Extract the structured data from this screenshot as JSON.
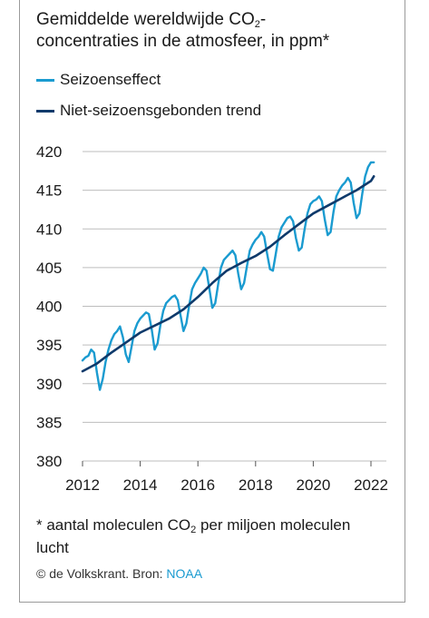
{
  "header": {
    "title_line1_a": "Gemiddelde wereldwijde CO",
    "title_line1_sub": "2",
    "title_line1_b": "-",
    "title_line2": "concentraties in de atmosfeer, in ppm*"
  },
  "footnote": {
    "text_a": "* aantal moleculen CO",
    "text_sub": "2",
    "text_b": " per miljoen moleculen",
    "text_c": "lucht"
  },
  "source": {
    "prefix": "© de Volkskrant. Bron: ",
    "link": "NOAA"
  },
  "colors": {
    "seasonal": "#1a9bd0",
    "trend": "#0f3a6b",
    "grid": "#bdbdbd"
  },
  "chart_data": {
    "type": "line",
    "x_ticks": [
      "2012",
      "2014",
      "2016",
      "2018",
      "2020",
      "2022"
    ],
    "y_ticks": [
      "380",
      "385",
      "390",
      "395",
      "400",
      "405",
      "410",
      "415",
      "420"
    ],
    "xlim": [
      2012,
      2022.5
    ],
    "ylim": [
      380,
      420
    ],
    "grid": true,
    "legend_position": "top-left",
    "series": [
      {
        "name": "Seizoenseffect",
        "x": [
          2012.0,
          2012.1,
          2012.2,
          2012.3,
          2012.4,
          2012.5,
          2012.6,
          2012.7,
          2012.8,
          2012.9,
          2013.0,
          2013.1,
          2013.2,
          2013.3,
          2013.4,
          2013.5,
          2013.6,
          2013.7,
          2013.8,
          2013.9,
          2014.0,
          2014.1,
          2014.2,
          2014.3,
          2014.4,
          2014.5,
          2014.6,
          2014.7,
          2014.8,
          2014.9,
          2015.0,
          2015.1,
          2015.2,
          2015.3,
          2015.4,
          2015.5,
          2015.6,
          2015.7,
          2015.8,
          2015.9,
          2016.0,
          2016.1,
          2016.2,
          2016.3,
          2016.4,
          2016.5,
          2016.6,
          2016.7,
          2016.8,
          2016.9,
          2017.0,
          2017.1,
          2017.2,
          2017.3,
          2017.4,
          2017.5,
          2017.6,
          2017.7,
          2017.8,
          2017.9,
          2018.0,
          2018.1,
          2018.2,
          2018.3,
          2018.4,
          2018.5,
          2018.6,
          2018.7,
          2018.8,
          2018.9,
          2019.0,
          2019.1,
          2019.2,
          2019.3,
          2019.4,
          2019.5,
          2019.6,
          2019.7,
          2019.8,
          2019.9,
          2020.0,
          2020.1,
          2020.2,
          2020.3,
          2020.4,
          2020.5,
          2020.6,
          2020.7,
          2020.8,
          2020.9,
          2021.0,
          2021.1,
          2021.2,
          2021.3,
          2021.4,
          2021.5,
          2021.6,
          2021.7,
          2021.8,
          2021.9,
          2022.0,
          2022.1
        ],
        "values": [
          393.0,
          393.4,
          393.6,
          394.4,
          394.0,
          391.4,
          389.2,
          390.6,
          392.8,
          394.4,
          395.6,
          396.4,
          396.8,
          397.4,
          396.0,
          393.8,
          392.8,
          394.8,
          396.8,
          397.8,
          398.4,
          398.8,
          399.2,
          399.0,
          397.0,
          394.4,
          395.2,
          397.6,
          399.4,
          400.4,
          400.8,
          401.2,
          401.4,
          400.8,
          398.8,
          396.8,
          397.8,
          400.2,
          402.2,
          403.0,
          403.6,
          404.2,
          405.0,
          404.6,
          402.2,
          399.8,
          400.4,
          402.8,
          405.0,
          406.0,
          406.4,
          406.8,
          407.2,
          406.6,
          404.2,
          402.2,
          403.0,
          405.2,
          407.2,
          408.0,
          408.6,
          409.0,
          409.6,
          409.0,
          406.8,
          404.8,
          404.6,
          406.8,
          409.0,
          410.2,
          410.8,
          411.4,
          411.6,
          411.0,
          408.8,
          407.2,
          407.6,
          410.0,
          412.0,
          413.2,
          413.6,
          413.8,
          414.2,
          413.6,
          411.2,
          409.2,
          409.6,
          412.2,
          414.2,
          415.0,
          415.6,
          416.0,
          416.6,
          416.0,
          413.4,
          411.4,
          412.0,
          414.6,
          416.8,
          418.0,
          418.6,
          418.6
        ]
      },
      {
        "name": "Niet-seizoensgebonden trend",
        "x": [
          2012.0,
          2012.5,
          2013.0,
          2013.5,
          2014.0,
          2014.5,
          2015.0,
          2015.5,
          2016.0,
          2016.5,
          2017.0,
          2017.5,
          2018.0,
          2018.5,
          2019.0,
          2019.5,
          2020.0,
          2020.5,
          2021.0,
          2021.5,
          2022.0,
          2022.1
        ],
        "values": [
          391.6,
          392.6,
          394.0,
          395.3,
          396.6,
          397.5,
          398.4,
          399.6,
          401.2,
          403.0,
          404.6,
          405.6,
          406.5,
          407.7,
          409.2,
          410.6,
          412.0,
          413.0,
          414.0,
          415.0,
          416.2,
          416.8
        ]
      }
    ]
  }
}
